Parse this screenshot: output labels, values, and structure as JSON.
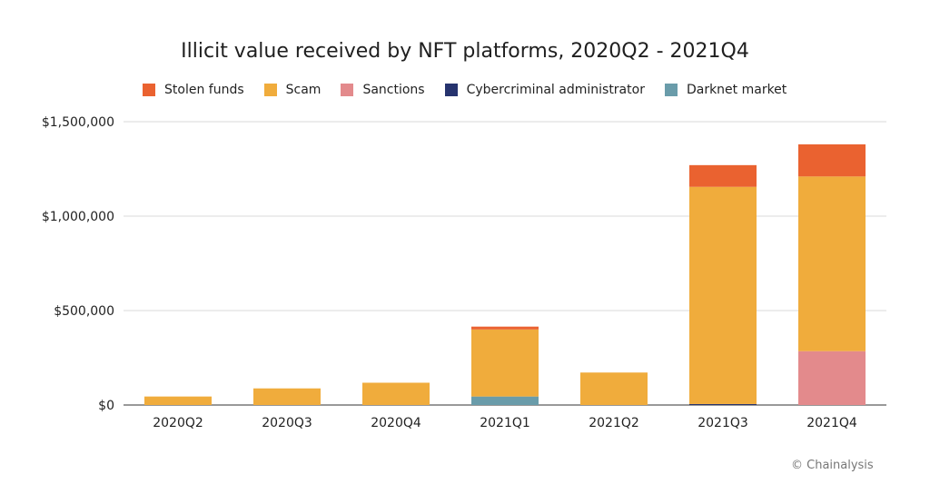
{
  "chart_data": {
    "type": "bar",
    "stacked": true,
    "title": "Illicit value received by NFT platforms, 2020Q2 - 2021Q4",
    "categories": [
      "2020Q2",
      "2020Q3",
      "2020Q4",
      "2021Q1",
      "2021Q2",
      "2021Q3",
      "2021Q4"
    ],
    "series": [
      {
        "name": "Darknet market",
        "color": "#6a9caa",
        "values": [
          0,
          0,
          0,
          45000,
          0,
          0,
          0
        ]
      },
      {
        "name": "Cybercriminal administrator",
        "color": "#26336e",
        "values": [
          0,
          0,
          0,
          0,
          0,
          5000,
          0
        ]
      },
      {
        "name": "Sanctions",
        "color": "#e38a8c",
        "values": [
          0,
          0,
          0,
          0,
          0,
          0,
          285000
        ]
      },
      {
        "name": "Scam",
        "color": "#f0ac3c",
        "values": [
          45000,
          88000,
          118000,
          355000,
          172000,
          1150000,
          925000
        ]
      },
      {
        "name": "Stolen funds",
        "color": "#ea6230",
        "values": [
          0,
          0,
          0,
          15000,
          0,
          115000,
          170000
        ]
      }
    ],
    "legend_order": [
      "Stolen funds",
      "Scam",
      "Sanctions",
      "Cybercriminal administrator",
      "Darknet market"
    ],
    "legend_position": "top",
    "yticks": [
      {
        "value": 0,
        "label": "$0"
      },
      {
        "value": 500000,
        "label": "$500,000"
      },
      {
        "value": 1000000,
        "label": "$1,000,000"
      },
      {
        "value": 1500000,
        "label": "$1,500,000"
      }
    ],
    "ylim": [
      0,
      1500000
    ],
    "grid": true
  },
  "source": "© Chainalysis"
}
